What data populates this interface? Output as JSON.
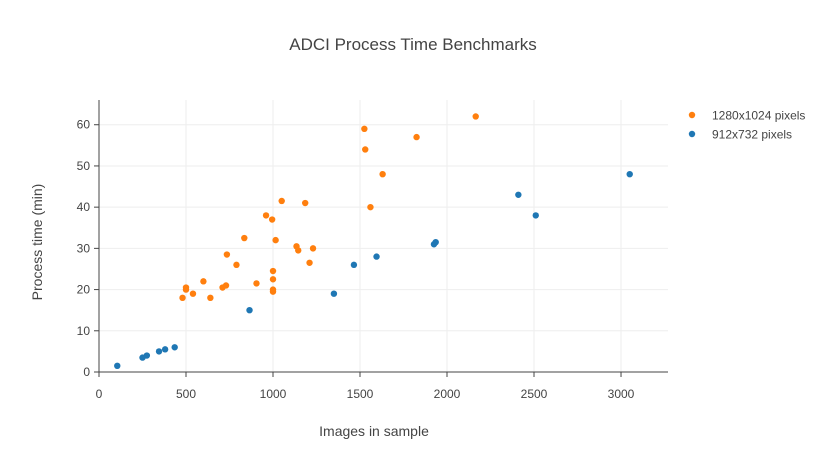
{
  "chart_data": {
    "type": "scatter",
    "title": "ADCI Process Time Benchmarks",
    "xlabel": "Images in sample",
    "ylabel": "Process time (min)",
    "xlim": [
      0,
      3270
    ],
    "ylim": [
      0,
      66
    ],
    "x_ticks": [
      0,
      500,
      1000,
      1500,
      2000,
      2500,
      3000
    ],
    "x_tick_labels": [
      "0",
      "500",
      "1000",
      "1500",
      "2000",
      "2500",
      "3000"
    ],
    "y_ticks": [
      0,
      10,
      20,
      30,
      40,
      50,
      60
    ],
    "y_tick_labels": [
      "0",
      "10",
      "20",
      "30",
      "40",
      "50",
      "60"
    ],
    "grid": true,
    "legend_position": "top-right",
    "series": [
      {
        "name": "1280x1024 pixels",
        "color": "#ff7f0e",
        "points": [
          {
            "x": 480,
            "y": 18
          },
          {
            "x": 500,
            "y": 20
          },
          {
            "x": 500,
            "y": 20.5
          },
          {
            "x": 540,
            "y": 19
          },
          {
            "x": 600,
            "y": 22
          },
          {
            "x": 640,
            "y": 18
          },
          {
            "x": 710,
            "y": 20.5
          },
          {
            "x": 730,
            "y": 21
          },
          {
            "x": 735,
            "y": 28.5
          },
          {
            "x": 790,
            "y": 26
          },
          {
            "x": 835,
            "y": 32.5
          },
          {
            "x": 905,
            "y": 21.5
          },
          {
            "x": 960,
            "y": 38
          },
          {
            "x": 995,
            "y": 37
          },
          {
            "x": 1000,
            "y": 24.5
          },
          {
            "x": 1000,
            "y": 22.5
          },
          {
            "x": 1000,
            "y": 20
          },
          {
            "x": 1000,
            "y": 19.5
          },
          {
            "x": 1015,
            "y": 32
          },
          {
            "x": 1050,
            "y": 41.5
          },
          {
            "x": 1135,
            "y": 30.5
          },
          {
            "x": 1145,
            "y": 29.5
          },
          {
            "x": 1185,
            "y": 41
          },
          {
            "x": 1210,
            "y": 26.5
          },
          {
            "x": 1230,
            "y": 30
          },
          {
            "x": 1525,
            "y": 59
          },
          {
            "x": 1530,
            "y": 54
          },
          {
            "x": 1560,
            "y": 40
          },
          {
            "x": 1630,
            "y": 48
          },
          {
            "x": 1825,
            "y": 57
          },
          {
            "x": 2165,
            "y": 62
          }
        ]
      },
      {
        "name": "912x732 pixels",
        "color": "#1f77b4",
        "points": [
          {
            "x": 105,
            "y": 1.5
          },
          {
            "x": 250,
            "y": 3.5
          },
          {
            "x": 275,
            "y": 4
          },
          {
            "x": 345,
            "y": 5
          },
          {
            "x": 380,
            "y": 5.5
          },
          {
            "x": 435,
            "y": 6
          },
          {
            "x": 865,
            "y": 15
          },
          {
            "x": 1350,
            "y": 19
          },
          {
            "x": 1465,
            "y": 26
          },
          {
            "x": 1595,
            "y": 28
          },
          {
            "x": 1925,
            "y": 31
          },
          {
            "x": 1935,
            "y": 31.5
          },
          {
            "x": 2410,
            "y": 43
          },
          {
            "x": 2510,
            "y": 38
          },
          {
            "x": 3050,
            "y": 48
          }
        ]
      }
    ]
  }
}
